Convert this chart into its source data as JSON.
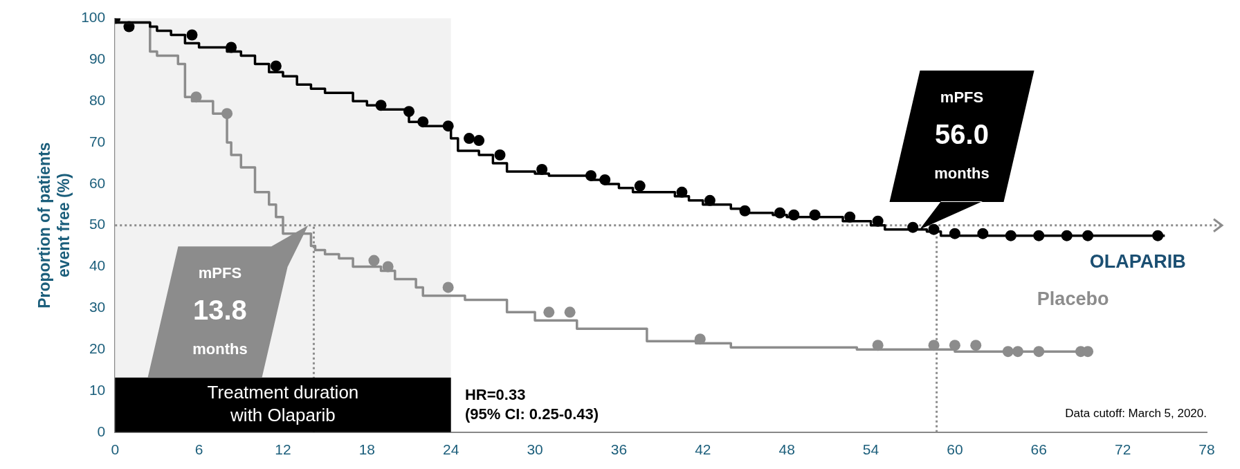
{
  "chart_data": {
    "type": "step",
    "ylabel": "Proportion of patients\nevent free (%)",
    "xlim": [
      0,
      78
    ],
    "xticks": [
      0,
      6,
      12,
      18,
      24,
      30,
      36,
      42,
      48,
      54,
      60,
      66,
      72,
      78
    ],
    "ylim": [
      0,
      100
    ],
    "yticks": [
      0,
      10,
      20,
      30,
      40,
      50,
      60,
      70,
      80,
      90,
      100
    ],
    "grid": false,
    "legend": false,
    "series": [
      {
        "name": "OLAPARIB",
        "color": "#000000",
        "marker": "none",
        "x": [
          0,
          2.5,
          3,
          4,
          5,
          6,
          8,
          9,
          10,
          11,
          12,
          13,
          14,
          15,
          17,
          18,
          19,
          21,
          22,
          24,
          24.5,
          26,
          27,
          28,
          30,
          31,
          34,
          35,
          36,
          37,
          40,
          41,
          42,
          44,
          45,
          47,
          48,
          52,
          54,
          55,
          58,
          59,
          63,
          75
        ],
        "values": [
          100,
          99,
          98,
          97,
          96,
          94,
          93,
          92,
          91,
          89,
          87,
          86,
          84,
          83,
          82,
          80,
          79,
          78,
          75,
          74,
          71,
          68,
          67,
          65,
          63,
          62.5,
          62,
          61,
          60,
          59,
          58,
          57,
          56,
          55,
          54,
          53,
          52.5,
          52,
          51,
          50,
          49,
          48.5,
          47.5,
          47.5
        ]
      },
      {
        "name": "Placebo",
        "color": "#8c8c8c",
        "marker": "none",
        "x": [
          0,
          2.5,
          3,
          4.5,
          5,
          5.5,
          7,
          8,
          8.3,
          9,
          10,
          11,
          11.5,
          12,
          14,
          14.3,
          15,
          16,
          17,
          19,
          20,
          21.5,
          22,
          25,
          28,
          30,
          33,
          38,
          41.5,
          44,
          53,
          60,
          61,
          69
        ],
        "values": [
          100,
          99,
          92,
          91,
          89,
          81,
          80,
          77,
          70,
          67,
          64,
          58,
          55,
          52,
          48,
          45,
          44,
          43,
          42,
          40,
          39,
          37,
          35,
          33,
          32,
          29,
          27,
          25,
          22,
          21.5,
          20.5,
          20,
          19.5,
          19.5
        ]
      },
      {
        "type": "scatter",
        "color": "#000000",
        "marker": "circle",
        "x": [
          0,
          1,
          5.5,
          8.3,
          11.5,
          19,
          21,
          22,
          23.8,
          25.3,
          26,
          27.5,
          30.5,
          34,
          35,
          37.5,
          40.5,
          42.5,
          45,
          47.5,
          48.5,
          50,
          52.5,
          54.5,
          57,
          58.5,
          60,
          62,
          64,
          66,
          68,
          69.5,
          74.5
        ],
        "values": [
          100,
          98,
          96,
          93,
          88.5,
          79,
          77.5,
          75,
          74,
          71,
          70.5,
          67,
          63.5,
          62,
          61,
          59.5,
          58,
          56,
          53.5,
          53,
          52.5,
          52.5,
          52,
          51,
          49.5,
          49,
          48,
          48,
          47.5,
          47.5,
          47.5,
          47.5,
          47.5
        ]
      },
      {
        "type": "scatter",
        "color": "#8c8c8c",
        "marker": "circle",
        "x": [
          5.8,
          8,
          18.5,
          19.5,
          23.8,
          31,
          32.5,
          41.8,
          54.5,
          58.5,
          60,
          61.5,
          63.8,
          64.5,
          66,
          69,
          69.5
        ],
        "values": [
          81,
          77,
          41.5,
          40,
          35,
          29,
          29,
          22.5,
          21,
          21,
          21,
          21,
          19.5,
          19.5,
          19.5,
          19.5,
          19.5
        ]
      }
    ],
    "bands": [
      {
        "axis": "x",
        "from": 0,
        "to": 24,
        "color": "#f2f2f2"
      }
    ],
    "ref_lines": [
      {
        "axis": "y",
        "value": 50,
        "color": "#8c8c8c",
        "line_style": "dotted"
      },
      {
        "axis": "x",
        "value": 14.2,
        "color": "#8c8c8c",
        "line_style": "dotted"
      },
      {
        "axis": "x",
        "value": 58.7,
        "color": "#8c8c8c",
        "line_style": "dotted"
      }
    ],
    "annotations": [
      "Treatment duration\nwith Olaparib",
      "HR=0.33\n(95% CI: 0.25-0.43)",
      "Data cutoff: March 5, 2020.",
      {
        "text": "mPFS\n13.8\nmonths",
        "x": 13.8,
        "y": 50
      },
      {
        "text": "mPFS\n56.0\nmonths",
        "x": 56.0,
        "y": 50
      }
    ]
  }
}
